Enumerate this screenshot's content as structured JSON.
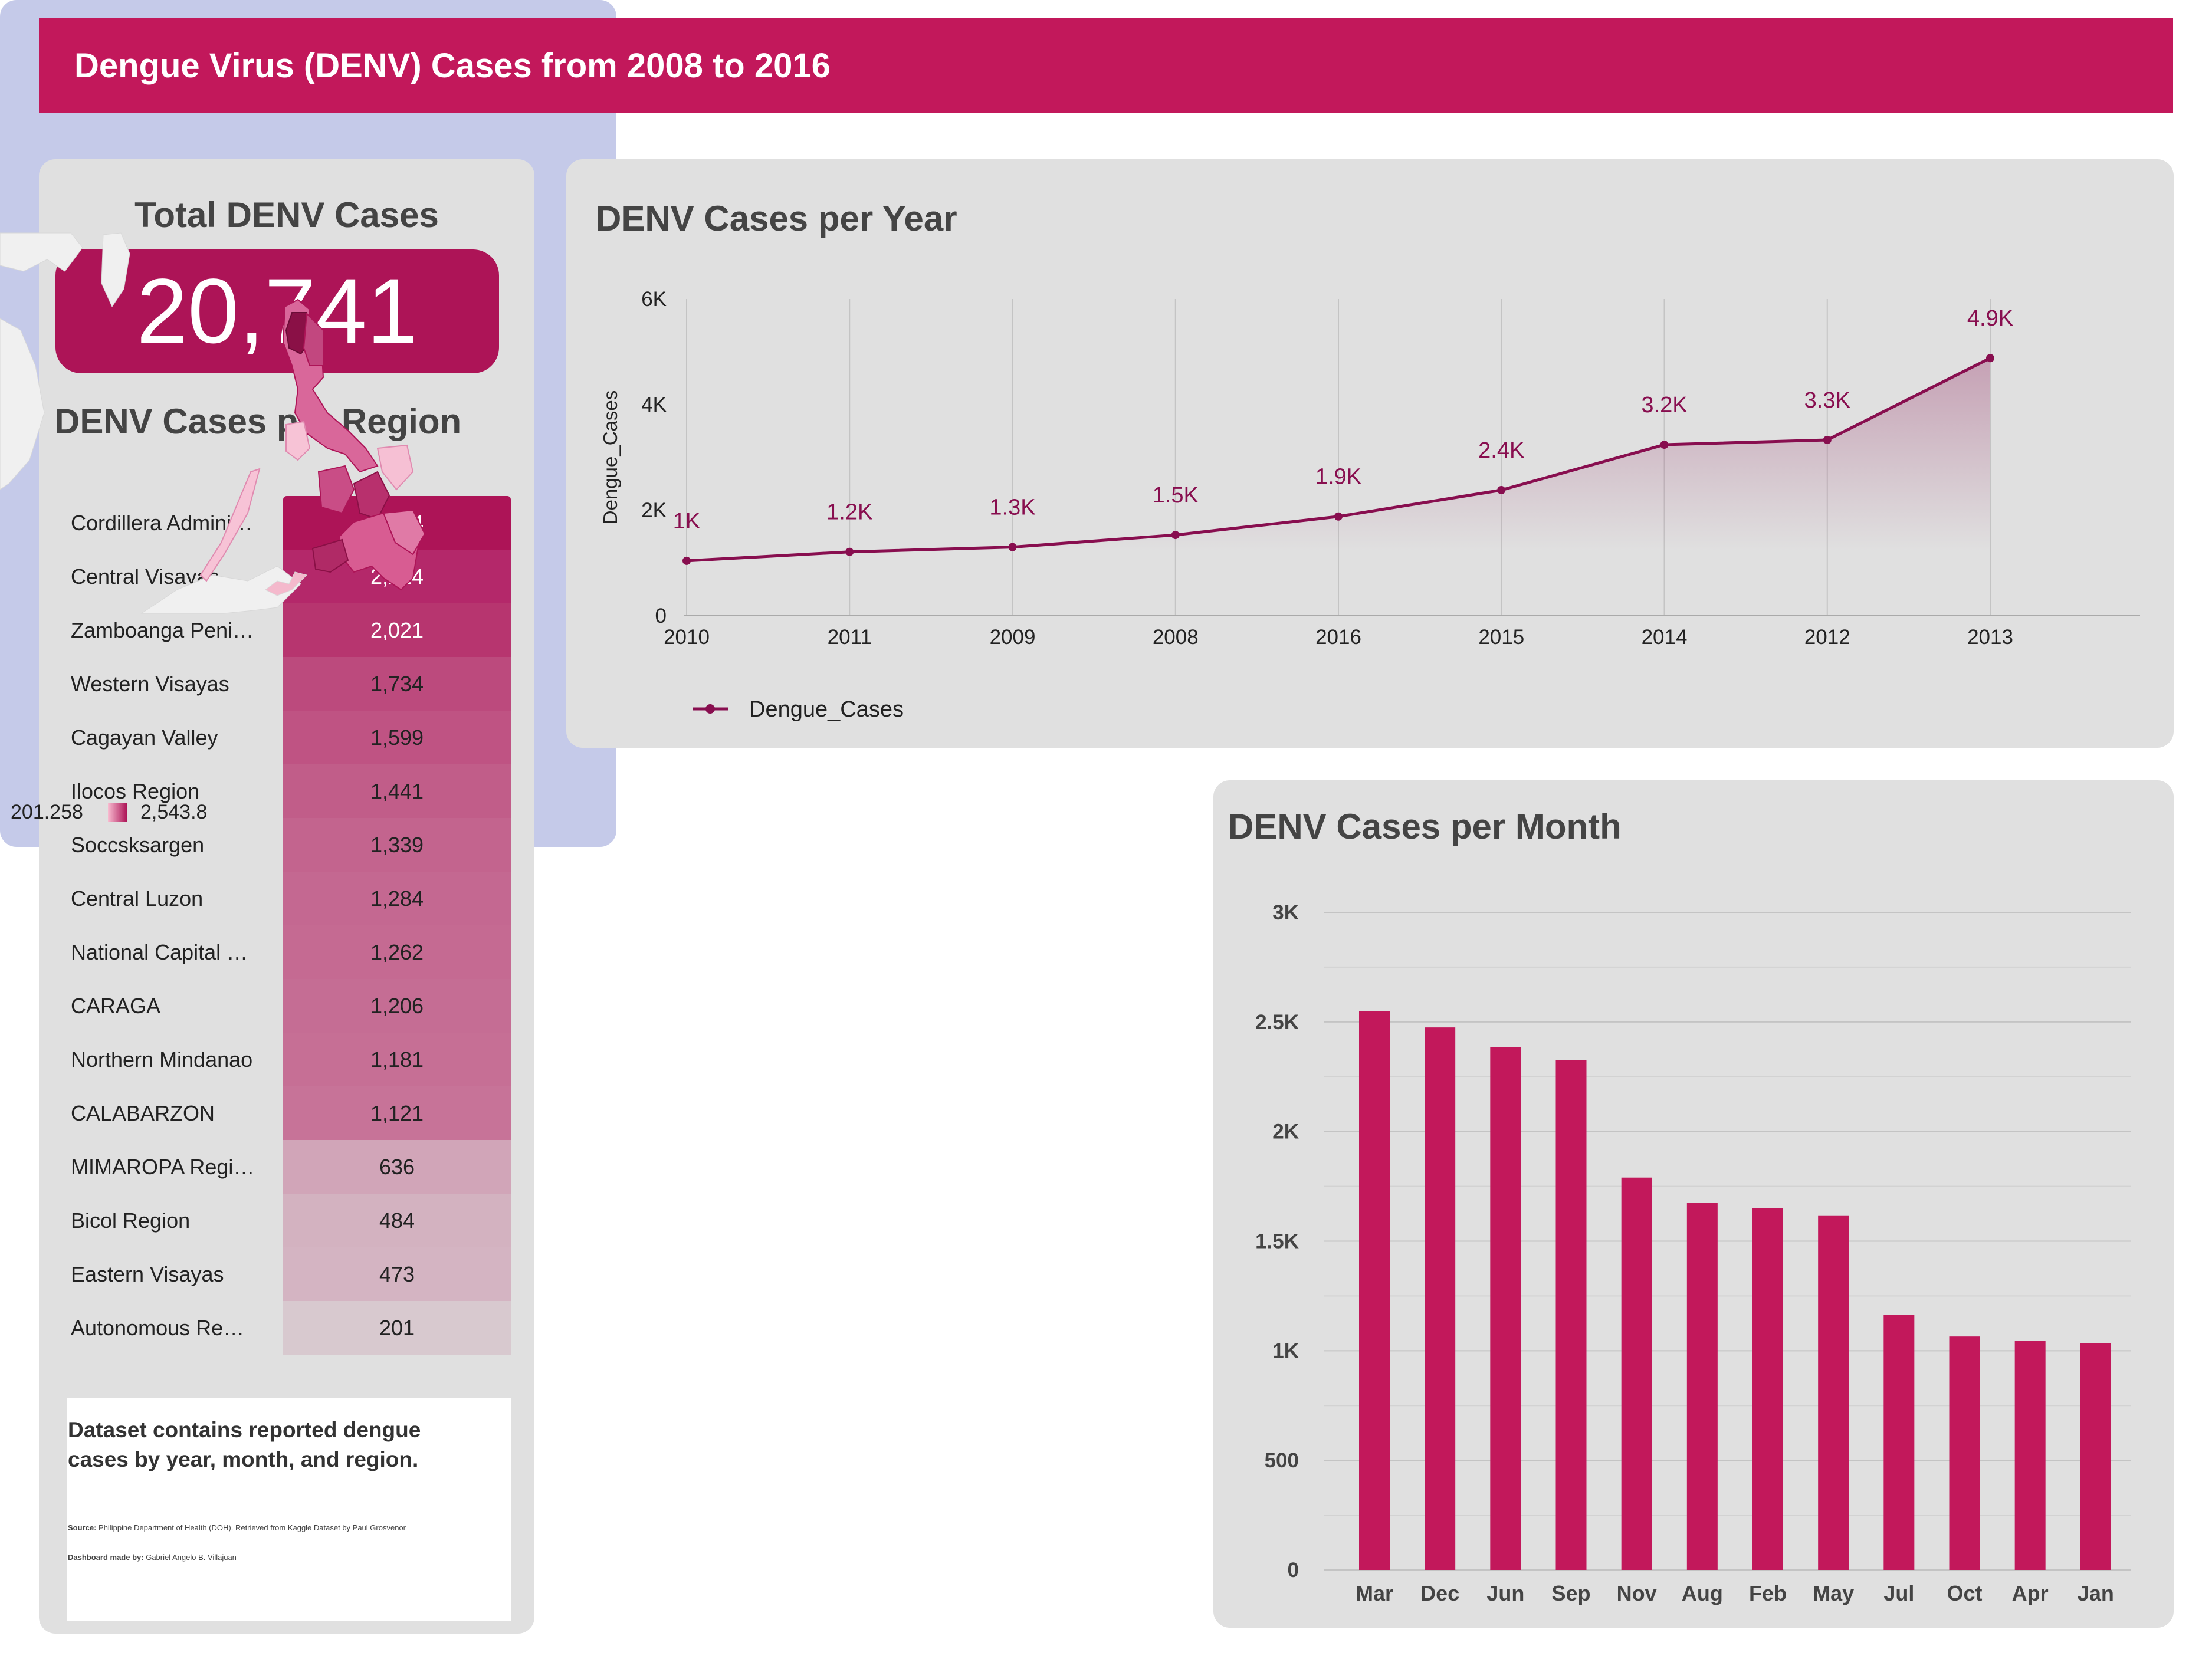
{
  "header": {
    "title": "Dengue Virus (DENV) Cases from 2008 to 2016"
  },
  "kpi": {
    "label": "Total DENV Cases",
    "value": "20,741"
  },
  "regions": {
    "title": "DENV Cases per Region",
    "rows": [
      {
        "name": "Cordillera Admini…",
        "value": "2,544",
        "color": "#ad1457",
        "text_color": "#ffffff"
      },
      {
        "name": "Central Visayas",
        "value": "2,214",
        "color": "#b4286a",
        "text_color": "#ffffff"
      },
      {
        "name": "Zamboanga Peni…",
        "value": "2,021",
        "color": "#b7356f",
        "text_color": "#ffffff"
      },
      {
        "name": "Western Visayas",
        "value": "1,734",
        "color": "#bc4a7d",
        "text_color": "#222222"
      },
      {
        "name": "Cagayan Valley",
        "value": "1,599",
        "color": "#bf5383",
        "text_color": "#222222"
      },
      {
        "name": "Ilocos Region",
        "value": "1,441",
        "color": "#c15d89",
        "text_color": "#222222"
      },
      {
        "name": "Soccsksargen",
        "value": "1,339",
        "color": "#c3648e",
        "text_color": "#222222"
      },
      {
        "name": "Central Luzon",
        "value": "1,284",
        "color": "#c46891",
        "text_color": "#222222"
      },
      {
        "name": "National Capital …",
        "value": "1,262",
        "color": "#c56a92",
        "text_color": "#222222"
      },
      {
        "name": "CARAGA",
        "value": "1,206",
        "color": "#c56d94",
        "text_color": "#222222"
      },
      {
        "name": "Northern Mindanao",
        "value": "1,181",
        "color": "#c66f95",
        "text_color": "#222222"
      },
      {
        "name": "CALABARZON",
        "value": "1,121",
        "color": "#c77398",
        "text_color": "#222222"
      },
      {
        "name": "MIMAROPA Region",
        "value": "636",
        "color": "#d1a5b8",
        "text_color": "#222222"
      },
      {
        "name": "Bicol Region",
        "value": "484",
        "color": "#d3b2c0",
        "text_color": "#222222"
      },
      {
        "name": "Eastern Visayas",
        "value": "473",
        "color": "#d4b4c2",
        "text_color": "#222222"
      },
      {
        "name": "Autonomous Reg…",
        "value": "201",
        "color": "#d8c9cf",
        "text_color": "#222222"
      }
    ]
  },
  "note": {
    "main": "Dataset contains reported dengue cases by year, month, and region.",
    "source_label": "Source:",
    "source_text": " Philippine Department of Health (DOH). Retrieved from Kaggle Dataset by Paul Grosvenor",
    "credit_label": "Dashboard made by:",
    "credit_text": " Gabriel Angelo B. Villajuan"
  },
  "year_chart": {
    "title": "DENV Cases per Year",
    "chart_data": {
      "type": "line",
      "categories": [
        "2010",
        "2011",
        "2009",
        "2008",
        "2016",
        "2015",
        "2014",
        "2012",
        "2013"
      ],
      "values": [
        1040,
        1210,
        1300,
        1530,
        1880,
        2380,
        3240,
        3330,
        4880
      ],
      "data_labels": [
        "1K",
        "1.2K",
        "1.3K",
        "1.5K",
        "1.9K",
        "2.4K",
        "3.2K",
        "3.3K",
        "4.9K"
      ],
      "ylabel": "Dengue_Cases",
      "ylim": [
        0,
        6000
      ],
      "yticks": [
        "0",
        "2K",
        "4K",
        "6K"
      ],
      "series_name": "Dengue_Cases",
      "color": "#880e4f",
      "grid": "vertical",
      "legend": "bottom-left"
    }
  },
  "map": {
    "legend_min": "201.258",
    "legend_max": "2,543.8",
    "colors": {
      "water": "#c5cae9",
      "land": "#f0f0f0",
      "low": "#f8bbd0",
      "high": "#ad1457"
    }
  },
  "month_chart": {
    "title": "DENV Cases per Month",
    "chart_data": {
      "type": "bar",
      "categories": [
        "Mar",
        "Dec",
        "Jun",
        "Sep",
        "Nov",
        "Aug",
        "Feb",
        "May",
        "Jul",
        "Oct",
        "Apr",
        "Jan"
      ],
      "values": [
        2550,
        2475,
        2385,
        2325,
        1790,
        1675,
        1650,
        1615,
        1165,
        1065,
        1045,
        1035
      ],
      "ylim": [
        0,
        3000
      ],
      "yticks": [
        "0",
        "500",
        "1K",
        "1.5K",
        "2K",
        "2.5K",
        "3K"
      ],
      "color": "#c2185b",
      "grid": "horizontal"
    }
  }
}
